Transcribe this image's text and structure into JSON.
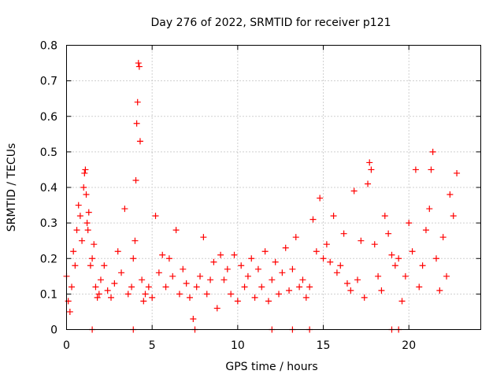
{
  "chart_data": {
    "type": "scatter",
    "title": "Day 276 of 2022, SRMTID for receiver p121",
    "xlabel": "GPS time / hours",
    "ylabel": "SRMTID / TECUs",
    "xlim": [
      0,
      24.2
    ],
    "ylim": [
      0,
      0.8
    ],
    "xticks": [
      0,
      5,
      10,
      15,
      20
    ],
    "xtick_labels": [
      "0",
      "5",
      "10",
      "15",
      "20"
    ],
    "yticks": [
      0,
      0.1,
      0.2,
      0.3,
      0.4,
      0.5,
      0.6,
      0.7,
      0.8
    ],
    "ytick_labels": [
      "0",
      "0.1",
      "0.2",
      "0.3",
      "0.4",
      "0.5",
      "0.6",
      "0.7",
      "0.8"
    ],
    "grid": true,
    "marker": "plus",
    "color": "#ff0000",
    "series": [
      {
        "name": "SRMTID",
        "x": [
          0.0,
          0.1,
          0.2,
          0.3,
          0.4,
          0.5,
          0.6,
          0.7,
          0.8,
          0.9,
          1.0,
          1.05,
          1.1,
          1.15,
          1.2,
          1.25,
          1.3,
          1.4,
          1.5,
          1.6,
          1.7,
          1.8,
          1.9,
          2.0,
          2.2,
          2.4,
          2.6,
          2.8,
          3.0,
          3.2,
          3.4,
          3.6,
          3.8,
          3.9,
          4.0,
          4.05,
          4.1,
          4.15,
          4.2,
          4.25,
          4.3,
          4.4,
          4.5,
          4.6,
          4.8,
          5.0,
          5.2,
          5.4,
          5.6,
          5.8,
          6.0,
          6.2,
          6.4,
          6.6,
          6.8,
          7.0,
          7.2,
          7.4,
          7.6,
          7.8,
          8.0,
          8.2,
          8.4,
          8.6,
          8.8,
          9.0,
          9.2,
          9.4,
          9.6,
          9.8,
          10.0,
          10.2,
          10.4,
          10.6,
          10.8,
          11.0,
          11.2,
          11.4,
          11.6,
          11.8,
          12.0,
          12.2,
          12.4,
          12.6,
          12.8,
          13.0,
          13.2,
          13.4,
          13.6,
          13.8,
          14.0,
          14.2,
          14.4,
          14.6,
          14.8,
          15.0,
          15.2,
          15.4,
          15.6,
          15.8,
          16.0,
          16.2,
          16.4,
          16.6,
          16.8,
          17.0,
          17.2,
          17.4,
          17.6,
          17.7,
          17.8,
          18.0,
          18.2,
          18.4,
          18.6,
          18.8,
          19.0,
          19.2,
          19.4,
          19.6,
          19.8,
          20.0,
          20.2,
          20.4,
          20.6,
          20.8,
          21.0,
          21.2,
          21.3,
          21.4,
          21.6,
          21.8,
          22.0,
          22.2,
          22.4,
          22.6,
          22.8,
          1.5,
          3.9,
          7.5,
          12.0,
          13.2,
          14.2,
          19.0,
          19.4
        ],
        "y": [
          0.15,
          0.08,
          0.05,
          0.12,
          0.22,
          0.18,
          0.28,
          0.35,
          0.32,
          0.25,
          0.4,
          0.44,
          0.45,
          0.38,
          0.3,
          0.28,
          0.33,
          0.18,
          0.2,
          0.24,
          0.12,
          0.09,
          0.1,
          0.14,
          0.18,
          0.11,
          0.09,
          0.13,
          0.22,
          0.16,
          0.34,
          0.1,
          0.12,
          0.2,
          0.25,
          0.42,
          0.58,
          0.64,
          0.75,
          0.74,
          0.53,
          0.14,
          0.08,
          0.1,
          0.12,
          0.09,
          0.32,
          0.16,
          0.21,
          0.12,
          0.2,
          0.15,
          0.28,
          0.1,
          0.17,
          0.13,
          0.09,
          0.03,
          0.12,
          0.15,
          0.26,
          0.1,
          0.14,
          0.19,
          0.06,
          0.21,
          0.14,
          0.17,
          0.1,
          0.21,
          0.08,
          0.18,
          0.12,
          0.15,
          0.2,
          0.09,
          0.17,
          0.12,
          0.22,
          0.08,
          0.14,
          0.19,
          0.1,
          0.16,
          0.23,
          0.11,
          0.17,
          0.26,
          0.12,
          0.14,
          0.09,
          0.12,
          0.31,
          0.22,
          0.37,
          0.2,
          0.24,
          0.19,
          0.32,
          0.16,
          0.18,
          0.27,
          0.13,
          0.11,
          0.39,
          0.14,
          0.25,
          0.09,
          0.41,
          0.47,
          0.45,
          0.24,
          0.15,
          0.11,
          0.32,
          0.27,
          0.21,
          0.18,
          0.2,
          0.08,
          0.15,
          0.3,
          0.22,
          0.45,
          0.12,
          0.18,
          0.28,
          0.34,
          0.45,
          0.5,
          0.2,
          0.11,
          0.26,
          0.15,
          0.38,
          0.32,
          0.44,
          0.0,
          0.0,
          0.0,
          0.0,
          0.0,
          0.0,
          0.0,
          0.0
        ]
      }
    ]
  }
}
